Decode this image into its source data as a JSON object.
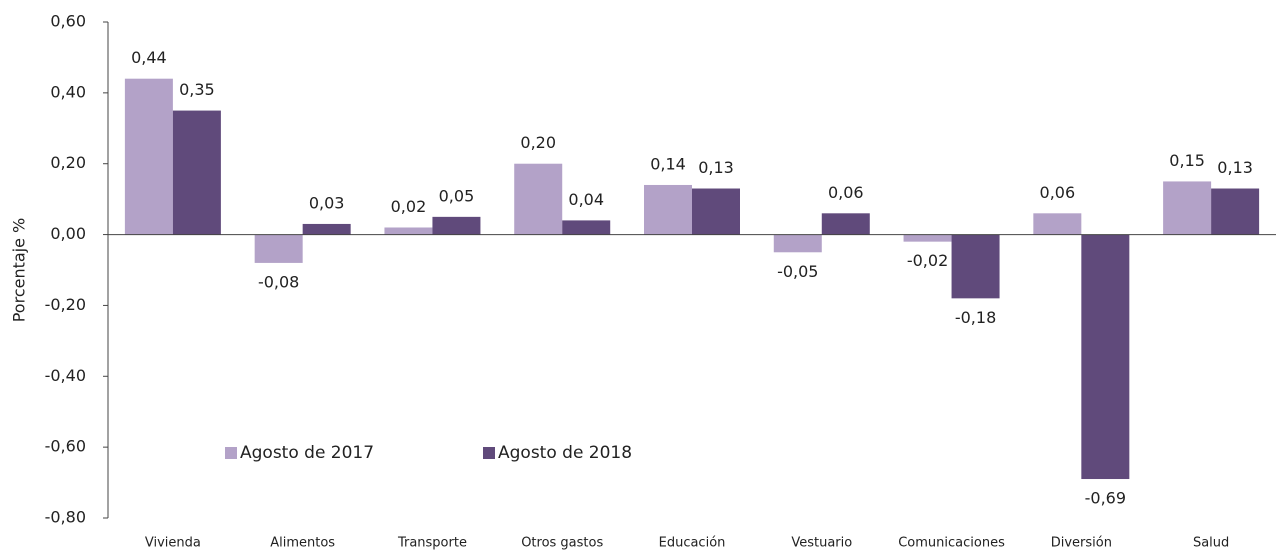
{
  "chart_data": {
    "type": "bar",
    "y_label": "Porcentaje %",
    "categories": [
      "Vivienda",
      "Alimentos",
      "Transporte",
      "Otros gastos",
      "Educación",
      "Vestuario",
      "Comunicaciones",
      "Diversión",
      "Salud"
    ],
    "series": [
      {
        "name": "Agosto de 2017",
        "color": "#b3a2c8",
        "values": [
          0.44,
          -0.08,
          0.02,
          0.2,
          0.14,
          -0.05,
          -0.02,
          0.06,
          0.15
        ],
        "value_labels": [
          "0,44",
          "-0,08",
          "0,02",
          "0,20",
          "0,14",
          "-0,05",
          "-0,02",
          "0,06",
          "0,15"
        ]
      },
      {
        "name": "Agosto de 2018",
        "color": "#604a7b",
        "values": [
          0.35,
          0.03,
          0.05,
          0.04,
          0.13,
          0.06,
          -0.18,
          -0.69,
          0.13
        ],
        "value_labels": [
          "0,35",
          "0,03",
          "0,05",
          "0,04",
          "0,13",
          "0,06",
          "-0,18",
          "-0,69",
          "0,13"
        ]
      }
    ],
    "ylim": [
      -0.8,
      0.6
    ],
    "yticks": [
      {
        "value": -0.8,
        "label": "-0,80"
      },
      {
        "value": -0.6,
        "label": "-0,60"
      },
      {
        "value": -0.4,
        "label": "-0,40"
      },
      {
        "value": -0.2,
        "label": "-0,20"
      },
      {
        "value": 0,
        "label": "0,00"
      },
      {
        "value": 0.2,
        "label": "0,20"
      },
      {
        "value": 0.4,
        "label": "0,40"
      },
      {
        "value": 0.6,
        "label": "0,60"
      }
    ],
    "grid": false,
    "legend": "lower left"
  }
}
